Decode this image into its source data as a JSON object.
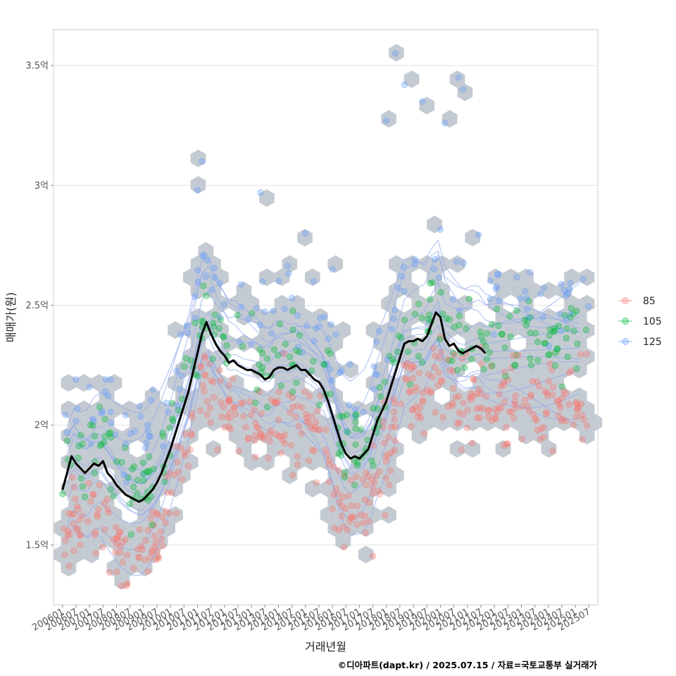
{
  "chart_data": {
    "type": "scatter",
    "title": "",
    "xlabel": "거래년월",
    "ylabel": "매매가(원)",
    "ylim": [
      1.25,
      3.65
    ],
    "x_range_months": [
      -4,
      238
    ],
    "y_ticks": [
      {
        "value": 1.5,
        "label": "1.5억"
      },
      {
        "value": 2.0,
        "label": "2억"
      },
      {
        "value": 2.5,
        "label": "2.5억"
      },
      {
        "value": 3.0,
        "label": "3억"
      },
      {
        "value": 3.5,
        "label": "3.5억"
      }
    ],
    "x_ticks": [
      "200601",
      "200607",
      "200701",
      "200707",
      "200801",
      "200807",
      "200901",
      "200907",
      "201001",
      "201007",
      "201101",
      "201107",
      "201201",
      "201207",
      "201301",
      "201307",
      "201401",
      "201407",
      "201501",
      "201507",
      "201601",
      "201607",
      "201701",
      "201707",
      "201801",
      "201807",
      "201901",
      "201907",
      "202001",
      "202007",
      "202101",
      "202107",
      "202201",
      "202207",
      "202301",
      "202307",
      "202401",
      "202407",
      "202501",
      "202507"
    ],
    "series": [
      {
        "name": "85",
        "color": "#F8766D"
      },
      {
        "name": "105",
        "color": "#00BA38"
      },
      {
        "name": "125",
        "color": "#619CFF"
      }
    ],
    "trend_line": {
      "name": "moving average",
      "color": "#000000",
      "points": [
        [
          0,
          1.73
        ],
        [
          2,
          1.8
        ],
        [
          4,
          1.87
        ],
        [
          6,
          1.84
        ],
        [
          8,
          1.82
        ],
        [
          10,
          1.8
        ],
        [
          12,
          1.82
        ],
        [
          14,
          1.84
        ],
        [
          16,
          1.83
        ],
        [
          18,
          1.85
        ],
        [
          20,
          1.8
        ],
        [
          22,
          1.78
        ],
        [
          24,
          1.75
        ],
        [
          26,
          1.73
        ],
        [
          28,
          1.71
        ],
        [
          30,
          1.7
        ],
        [
          32,
          1.69
        ],
        [
          34,
          1.68
        ],
        [
          36,
          1.69
        ],
        [
          38,
          1.71
        ],
        [
          40,
          1.73
        ],
        [
          42,
          1.76
        ],
        [
          44,
          1.8
        ],
        [
          46,
          1.85
        ],
        [
          48,
          1.9
        ],
        [
          50,
          1.96
        ],
        [
          52,
          2.02
        ],
        [
          54,
          2.08
        ],
        [
          56,
          2.14
        ],
        [
          58,
          2.22
        ],
        [
          60,
          2.3
        ],
        [
          62,
          2.38
        ],
        [
          64,
          2.43
        ],
        [
          66,
          2.38
        ],
        [
          68,
          2.34
        ],
        [
          70,
          2.31
        ],
        [
          72,
          2.29
        ],
        [
          74,
          2.26
        ],
        [
          76,
          2.27
        ],
        [
          78,
          2.25
        ],
        [
          80,
          2.24
        ],
        [
          82,
          2.23
        ],
        [
          84,
          2.23
        ],
        [
          86,
          2.22
        ],
        [
          88,
          2.21
        ],
        [
          90,
          2.19
        ],
        [
          92,
          2.2
        ],
        [
          94,
          2.23
        ],
        [
          96,
          2.24
        ],
        [
          98,
          2.24
        ],
        [
          100,
          2.23
        ],
        [
          102,
          2.24
        ],
        [
          104,
          2.25
        ],
        [
          106,
          2.23
        ],
        [
          108,
          2.23
        ],
        [
          110,
          2.21
        ],
        [
          112,
          2.19
        ],
        [
          114,
          2.18
        ],
        [
          116,
          2.15
        ],
        [
          118,
          2.1
        ],
        [
          120,
          2.04
        ],
        [
          122,
          1.98
        ],
        [
          124,
          1.92
        ],
        [
          126,
          1.88
        ],
        [
          128,
          1.86
        ],
        [
          130,
          1.87
        ],
        [
          132,
          1.86
        ],
        [
          134,
          1.88
        ],
        [
          136,
          1.9
        ],
        [
          138,
          1.96
        ],
        [
          140,
          2.02
        ],
        [
          142,
          2.06
        ],
        [
          144,
          2.1
        ],
        [
          146,
          2.16
        ],
        [
          148,
          2.22
        ],
        [
          150,
          2.28
        ],
        [
          152,
          2.34
        ],
        [
          154,
          2.35
        ],
        [
          156,
          2.35
        ],
        [
          158,
          2.36
        ],
        [
          160,
          2.35
        ],
        [
          162,
          2.37
        ],
        [
          164,
          2.42
        ],
        [
          166,
          2.47
        ],
        [
          168,
          2.45
        ],
        [
          170,
          2.36
        ],
        [
          172,
          2.33
        ],
        [
          174,
          2.34
        ],
        [
          176,
          2.31
        ],
        [
          178,
          2.3
        ],
        [
          180,
          2.31
        ],
        [
          182,
          2.32
        ],
        [
          184,
          2.33
        ],
        [
          186,
          2.32
        ],
        [
          188,
          2.3
        ]
      ]
    },
    "legend_position": "right"
  },
  "caption": "©디아파트(dapt.kr) / 2025.07.15 / 자료=국토교통부 실거래가"
}
